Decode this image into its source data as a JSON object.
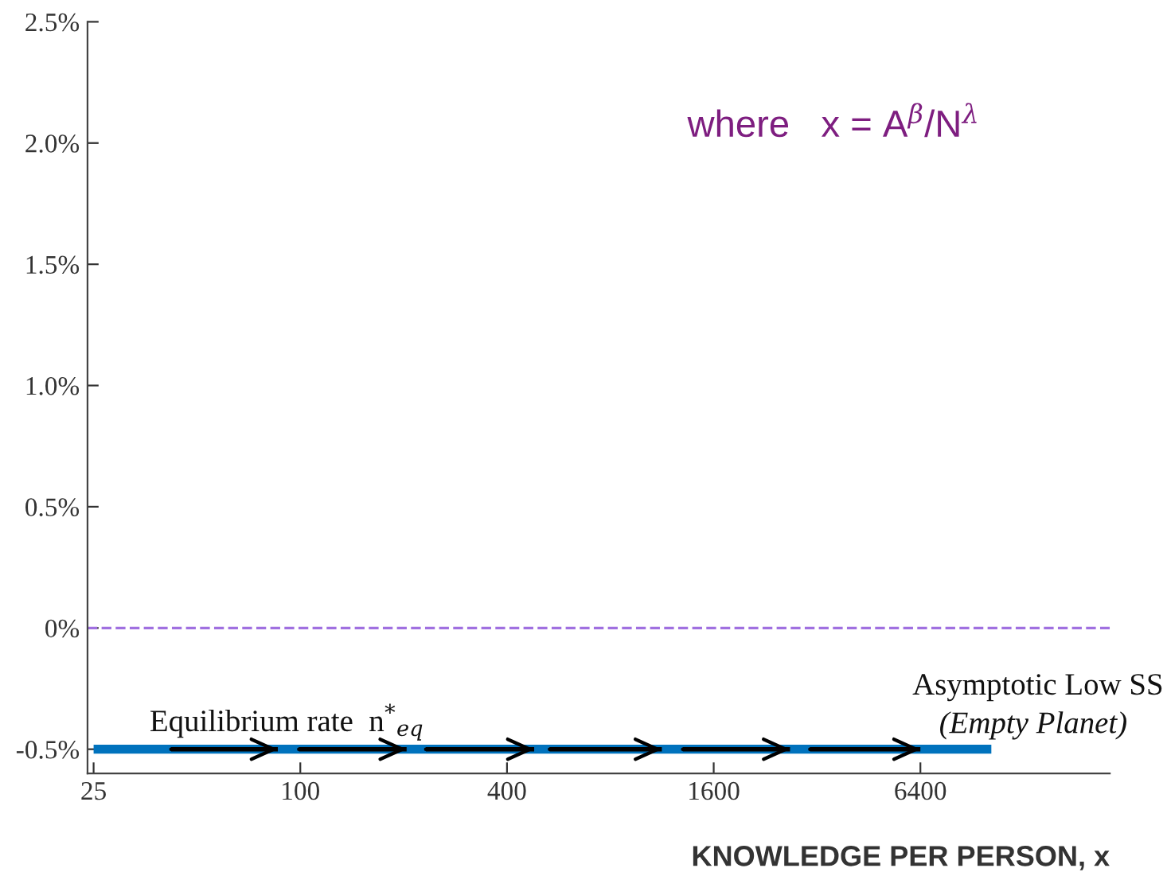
{
  "chart_data": {
    "type": "line",
    "xlabel": "KNOWLEDGE PER PERSON, x",
    "log": "x",
    "grid": false,
    "xlim": [
      24,
      22800
    ],
    "xticks": [
      25,
      100,
      400,
      1600,
      6400
    ],
    "ylim": [
      -0.6,
      2.5
    ],
    "yticks": [
      {
        "value": -0.5,
        "label": "-0.5%"
      },
      {
        "value": 0,
        "label": "0%"
      },
      {
        "value": 0.5,
        "label": "0.5%"
      },
      {
        "value": 1.0,
        "label": "1.0%"
      },
      {
        "value": 1.5,
        "label": "1.5%"
      },
      {
        "value": 2.0,
        "label": "2.0%"
      },
      {
        "value": 2.5,
        "label": "2.5%"
      }
    ],
    "series": [
      {
        "color": "#0072bd",
        "x": [
          25,
          10300
        ],
        "values": [
          -0.5,
          -0.5
        ]
      },
      {
        "color": "#000000",
        "x": [
          42,
          86,
          null,
          99,
          204,
          null,
          232,
          480,
          null,
          532,
          1130,
          null,
          1300,
          2670,
          null,
          3050,
          6400
        ],
        "values": [
          -0.5,
          -0.5,
          null,
          -0.5,
          -0.5,
          null,
          -0.5,
          -0.5,
          null,
          -0.5,
          -0.5,
          null,
          -0.5,
          -0.5,
          null,
          -0.5,
          -0.5
        ]
      }
    ],
    "ref_lines": [
      {
        "axis": "y",
        "value": 0,
        "color": "#a070e0",
        "line_style": "dashed"
      }
    ],
    "annotations": [
      "where   x = A$^{β}$/N$^{λ}$",
      "Equilibrium rate  n$^{*}$$_{eq}$",
      "Asymptotic Low SS",
      "(Empty Planet)"
    ]
  }
}
